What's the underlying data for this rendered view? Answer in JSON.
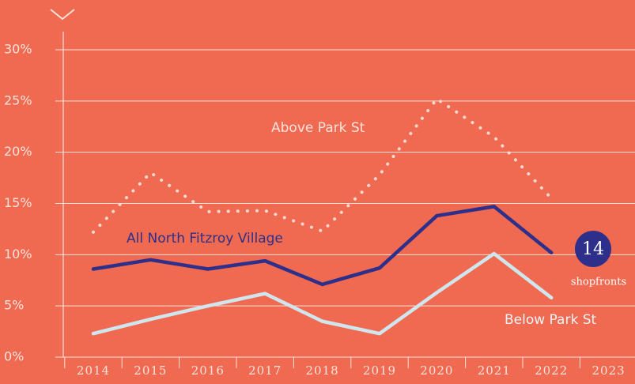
{
  "chart_data": {
    "type": "line",
    "categories": [
      "2014",
      "2015",
      "2016",
      "2017",
      "2018",
      "2019",
      "2020",
      "2021",
      "2022",
      "2023"
    ],
    "series": [
      {
        "name": "Above Park St",
        "color": "#f7d9d1",
        "dash": true,
        "values": [
          12.2,
          18.0,
          14.2,
          14.3,
          12.3,
          17.8,
          25.2,
          21.5,
          15.5,
          null
        ]
      },
      {
        "name": "All North Fitzroy Village",
        "color": "#2e2f8a",
        "dash": false,
        "values": [
          8.6,
          9.5,
          8.6,
          9.4,
          7.1,
          8.7,
          13.8,
          14.7,
          10.2,
          null
        ]
      },
      {
        "name": "Below Park St",
        "color": "#cfe6ee",
        "dash": false,
        "values": [
          2.3,
          3.7,
          5.0,
          6.2,
          3.5,
          2.3,
          6.3,
          10.1,
          5.8,
          null
        ]
      }
    ],
    "ylim": [
      0,
      30
    ],
    "yticks": [
      {
        "value": 0,
        "label": "0%"
      },
      {
        "value": 5,
        "label": "5%"
      },
      {
        "value": 10,
        "label": "10%"
      },
      {
        "value": 15,
        "label": "15%"
      },
      {
        "value": 20,
        "label": "20%"
      },
      {
        "value": 25,
        "label": "25%"
      },
      {
        "value": 30,
        "label": "30%"
      }
    ],
    "grid": true,
    "badge": {
      "number": "14",
      "label": "shopfronts"
    }
  }
}
